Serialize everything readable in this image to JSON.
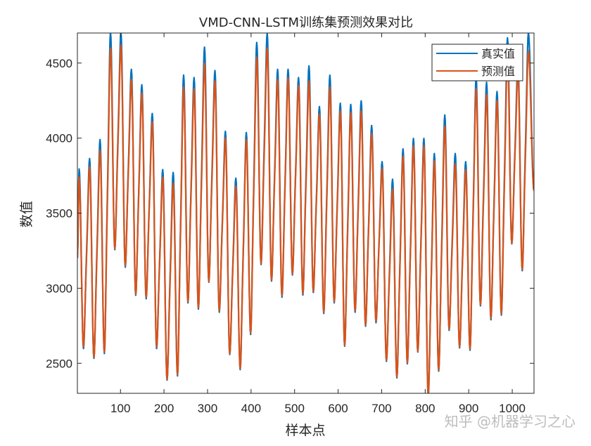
{
  "chart_data": {
    "type": "line",
    "title": "VMD-CNN-LSTM训练集预测效果对比",
    "xlabel": "样本点",
    "ylabel": "数值",
    "xlim": [
      1,
      1050
    ],
    "ylim": [
      2300,
      4700
    ],
    "xticks": [
      100,
      200,
      300,
      400,
      500,
      600,
      700,
      800,
      900,
      1000
    ],
    "yticks": [
      2500,
      3000,
      3500,
      4000,
      4500
    ],
    "grid": false,
    "legend_placement": "top-right",
    "cycle_length": 24,
    "start": {
      "x": 1,
      "y": 3200
    },
    "end": {
      "x": 1050,
      "y": 3650
    },
    "series": [
      {
        "name": "真实值",
        "color": "#0072BD",
        "peak_first_x": 5,
        "peaks": [
          3794,
          3864,
          3990,
          4705,
          4705,
          4458,
          4355,
          4164,
          3790,
          3771,
          4420,
          4403,
          4606,
          4450,
          4045,
          3733,
          4037,
          4637,
          4699,
          4458,
          4458,
          4403,
          4481,
          4210,
          4419,
          4232,
          4224,
          4248,
          4084,
          3843,
          3726,
          3928,
          3998,
          3998,
          3897,
          4154,
          3897,
          3843,
          4403,
          4372,
          4310,
          4668,
          4505,
          4700
        ],
        "trough_first_x": 15,
        "troughs": [
          2598,
          2533,
          2565,
          3257,
          3140,
          2953,
          2930,
          2598,
          2388,
          2416,
          2902,
          2861,
          3040,
          2840,
          2559,
          2458,
          2692,
          3158,
          3048,
          2940,
          3088,
          2955,
          2972,
          2832,
          2902,
          2614,
          2840,
          2747,
          2770,
          2513,
          2403,
          2497,
          2575,
          2280,
          2448,
          2720,
          2603,
          2587,
          2883,
          2790,
          2821,
          3296,
          3117
        ]
      },
      {
        "name": "预测值",
        "color": "#D95319",
        "peak_first_x": 5,
        "peaks": [
          3740,
          3810,
          3920,
          4600,
          4620,
          4390,
          4300,
          4110,
          3740,
          3700,
          4340,
          4330,
          4500,
          4380,
          4000,
          3680,
          3990,
          4540,
          4600,
          4390,
          4400,
          4350,
          4380,
          4160,
          4340,
          4180,
          4170,
          4180,
          4030,
          3800,
          3660,
          3880,
          3950,
          3950,
          3850,
          4080,
          3830,
          3790,
          4330,
          4290,
          4250,
          4560,
          4440,
          4580
        ],
        "trough_first_x": 15,
        "troughs": [
          2610,
          2540,
          2575,
          3265,
          3150,
          2960,
          2940,
          2610,
          2395,
          2425,
          2910,
          2870,
          3045,
          2850,
          2565,
          2465,
          2700,
          3165,
          3055,
          2950,
          3095,
          2965,
          2980,
          2840,
          2910,
          2620,
          2850,
          2755,
          2780,
          2520,
          2410,
          2505,
          2580,
          2290,
          2455,
          2728,
          2610,
          2595,
          2890,
          2800,
          2830,
          3300,
          3125
        ]
      }
    ]
  },
  "watermark": "知乎 @机器学习之心"
}
